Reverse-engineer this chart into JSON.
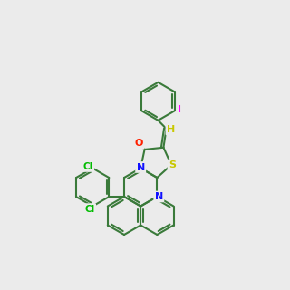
{
  "bg": "#ebebeb",
  "bond_color": "#3a7a3a",
  "lw": 1.5,
  "bl": 21,
  "atom_colors": {
    "N": "#1010ff",
    "O": "#ff2000",
    "S": "#c8c800",
    "Cl": "#00bb00",
    "I": "#ff00ff",
    "H": "#c8c800"
  },
  "label_fs": 8.0
}
